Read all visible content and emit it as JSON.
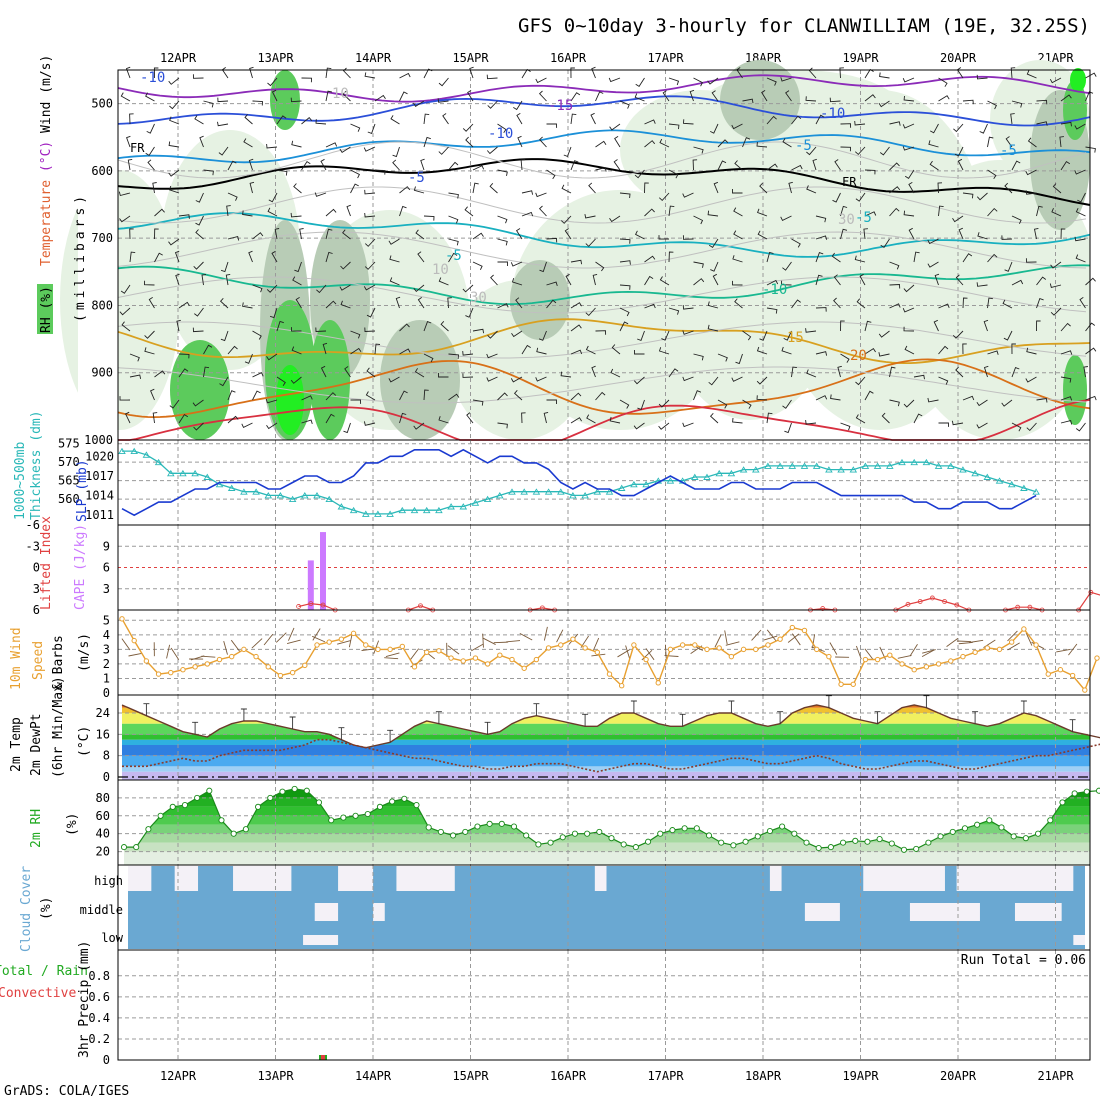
{
  "title": "GFS 0~10day 3-hourly for CLANWILLIAM (19E, 32.25S)",
  "footer": "GrADS: COLA/IGES",
  "dates": [
    "12APR",
    "13APR",
    "14APR",
    "15APR",
    "16APR",
    "17APR",
    "18APR",
    "19APR",
    "20APR",
    "21APR"
  ],
  "colors": {
    "grid": "#9a9a9a",
    "rh_light": "#e6f2e3",
    "rh_mid": "#b8ccb6",
    "rh_green": "#5ccb5c",
    "rh_bright": "#22ee22",
    "slp": "#1a3ad0",
    "thickness": "#2ab8b8",
    "lifted": "#e04040",
    "cape": "#cc7aff",
    "wind": "#e8a030",
    "cloud": "#6aa8d2",
    "cloud_clear": "#f4f1f7"
  },
  "chart_data": [
    {
      "type": "contour",
      "name": "upper",
      "legend": {
        "rh": "RH (%)",
        "temperature": "Temperature",
        "temperature_unit": "(°C)",
        "wind": "Wind (m/s)"
      },
      "ylabel": "(millibars)",
      "yticks": [
        500,
        600,
        700,
        800,
        900,
        1000
      ],
      "ylim": [
        1000,
        450
      ],
      "freezing_label": "FR",
      "isotherm_labels": [
        "-10",
        "-15",
        "-10",
        "-10",
        "-5",
        "-5",
        "-5",
        "-5",
        "-5",
        "-10",
        "10",
        "15",
        "20",
        "10",
        "30",
        "30"
      ]
    },
    {
      "type": "line",
      "name": "slp_thickness",
      "legend": {
        "thickness": "1000~500mb",
        "thickness2": "Thickness (dm)",
        "slp": "SLP (mb)"
      },
      "yticks_thickness": [
        560,
        565,
        570,
        575
      ],
      "yticks_slp": [
        1011,
        1014,
        1017,
        1020
      ],
      "thickness_dm": [
        573,
        573,
        572,
        570,
        567,
        567,
        567,
        566,
        564,
        563,
        562,
        562,
        561,
        561,
        560,
        561,
        561,
        560,
        558,
        557,
        556,
        556,
        556,
        557,
        557,
        557,
        557,
        558,
        558,
        559,
        560,
        561,
        562,
        562,
        562,
        562,
        562,
        561,
        561,
        562,
        562,
        563,
        564,
        564,
        565,
        565,
        565,
        566,
        566,
        567,
        567,
        568,
        568,
        569,
        569,
        569,
        569,
        569,
        568,
        568,
        568,
        569,
        569,
        569,
        570,
        570,
        570,
        569,
        569,
        568,
        567,
        566,
        565,
        564,
        563,
        562
      ],
      "slp_mb": [
        1012,
        1011,
        1012,
        1013,
        1013,
        1014,
        1015,
        1015,
        1016,
        1016,
        1016,
        1016,
        1015,
        1015,
        1016,
        1017,
        1017,
        1016,
        1016,
        1017,
        1019,
        1019,
        1020,
        1020,
        1021,
        1021,
        1021,
        1020,
        1021,
        1020,
        1019,
        1020,
        1020,
        1019,
        1019,
        1018,
        1016,
        1015,
        1016,
        1015,
        1015,
        1014,
        1014,
        1015,
        1016,
        1017,
        1016,
        1015,
        1015,
        1015,
        1016,
        1016,
        1015,
        1015,
        1015,
        1016,
        1016,
        1016,
        1015,
        1014,
        1014,
        1014,
        1014,
        1014,
        1014,
        1013,
        1013,
        1012,
        1012,
        1013,
        1013,
        1013,
        1012,
        1012,
        1013,
        1014
      ]
    },
    {
      "type": "bar",
      "name": "cape_lifted",
      "legend": {
        "lifted": "Lifted Index",
        "cape": "CAPE (J/kg)"
      },
      "yticks_lifted": [
        -6,
        -3,
        0,
        3,
        6
      ],
      "yticks_cape": [
        3,
        6,
        9
      ],
      "cape_x_index": [
        15,
        16
      ],
      "cape_values": [
        7,
        11
      ],
      "lifted_segments": [
        {
          "x": [
            14,
            15,
            16,
            17
          ],
          "y": [
            5.5,
            5.1,
            5.3,
            6.0
          ]
        },
        {
          "x": [
            23,
            24,
            25
          ],
          "y": [
            6.0,
            5.4,
            6.0
          ]
        },
        {
          "x": [
            33,
            34,
            35
          ],
          "y": [
            6.0,
            5.7,
            6.0
          ]
        },
        {
          "x": [
            56,
            57,
            58
          ],
          "y": [
            6.0,
            5.8,
            6.0
          ]
        },
        {
          "x": [
            63,
            64,
            65,
            66,
            67,
            68,
            69
          ],
          "y": [
            6.0,
            5.2,
            4.8,
            4.3,
            4.8,
            5.3,
            6.0
          ]
        },
        {
          "x": [
            72,
            73,
            74,
            75
          ],
          "y": [
            6.0,
            5.6,
            5.6,
            6.0
          ]
        },
        {
          "x": [
            78,
            79,
            80
          ],
          "y": [
            6.0,
            3.5,
            4.0
          ]
        }
      ]
    },
    {
      "type": "line",
      "name": "wind10m",
      "legend": {
        "a": "10m Wind",
        "b": "Speed",
        "c": "& Barbs",
        "d": "(m/s)"
      },
      "yticks": [
        0,
        1,
        2,
        3,
        4,
        5
      ],
      "speed_ms": [
        5.1,
        3.6,
        2.2,
        1.3,
        1.4,
        1.6,
        1.8,
        2.0,
        2.3,
        2.5,
        3.0,
        2.5,
        1.8,
        1.2,
        1.4,
        1.9,
        3.3,
        3.5,
        3.7,
        4.1,
        3.3,
        3.0,
        3.0,
        3.2,
        1.8,
        2.8,
        2.9,
        2.4,
        2.2,
        2.4,
        2.0,
        2.6,
        2.3,
        1.7,
        2.3,
        3.1,
        3.3,
        3.7,
        3.1,
        2.8,
        1.3,
        0.5,
        3.3,
        2.3,
        0.7,
        3.0,
        3.3,
        3.3,
        3.0,
        3.1,
        2.5,
        3.0,
        3.0,
        3.3,
        3.7,
        4.5,
        4.3,
        3.0,
        2.5,
        0.6,
        0.6,
        2.3,
        2.3,
        2.6,
        2.0,
        1.6,
        1.8,
        2.0,
        2.2,
        2.5,
        2.8,
        3.1,
        3.0,
        3.5,
        4.4,
        3.3,
        1.3,
        1.6,
        1.2,
        0.2,
        2.4
      ]
    },
    {
      "type": "area",
      "name": "temp2m",
      "legend": {
        "a": "2m Temp",
        "b": "2m DewPt",
        "c": "(6hr Min/Max)",
        "d": "(°C)"
      },
      "yticks": [
        0,
        8,
        16,
        24
      ],
      "temp_c": [
        27,
        25,
        23,
        21,
        19,
        17,
        16,
        15,
        18,
        20,
        21,
        21,
        20,
        19,
        18,
        17,
        17,
        16,
        14,
        12,
        11,
        12,
        13,
        16,
        19,
        21,
        20,
        19,
        18,
        17,
        16,
        17,
        20,
        22,
        23,
        22,
        21,
        20,
        19,
        19,
        22,
        24,
        24,
        22,
        20,
        19,
        19,
        21,
        23,
        24,
        24,
        22,
        20,
        19,
        20,
        24,
        26,
        27,
        26,
        24,
        22,
        21,
        20,
        23,
        26,
        27,
        26,
        24,
        22,
        21,
        20,
        19,
        20,
        22,
        24,
        23,
        21,
        19,
        17,
        16,
        15,
        14
      ],
      "dew_c": [
        4,
        4,
        4,
        5,
        6,
        7,
        6,
        6,
        8,
        9,
        10,
        10,
        10,
        10,
        11,
        12,
        14,
        14,
        13,
        12,
        11,
        10,
        9,
        8,
        7,
        7,
        6,
        5,
        4,
        4,
        3,
        3,
        4,
        4,
        5,
        5,
        5,
        4,
        3,
        2,
        3,
        4,
        5,
        5,
        4,
        3,
        3,
        4,
        5,
        6,
        7,
        7,
        6,
        5,
        5,
        6,
        7,
        8,
        7,
        5,
        4,
        3,
        3,
        4,
        5,
        6,
        6,
        5,
        4,
        3,
        3,
        4,
        5,
        6,
        7,
        8,
        8,
        9,
        10,
        11,
        12,
        13
      ]
    },
    {
      "type": "area",
      "name": "rh2m",
      "legend": {
        "a": "2m RH",
        "b": "(%)"
      },
      "yticks": [
        20,
        40,
        60,
        80
      ],
      "rh_pct": [
        25,
        25,
        45,
        60,
        70,
        72,
        80,
        88,
        55,
        40,
        45,
        70,
        80,
        87,
        90,
        88,
        75,
        55,
        58,
        60,
        62,
        70,
        76,
        79,
        72,
        47,
        42,
        38,
        42,
        48,
        51,
        51,
        48,
        38,
        28,
        30,
        36,
        40,
        40,
        42,
        35,
        28,
        25,
        31,
        40,
        44,
        46,
        46,
        38,
        30,
        27,
        31,
        37,
        43,
        48,
        40,
        30,
        24,
        25,
        30,
        32,
        31,
        34,
        29,
        22,
        23,
        30,
        37,
        42,
        46,
        50,
        55,
        47,
        37,
        35,
        40,
        55,
        75,
        85,
        87,
        88
      ]
    },
    {
      "type": "heatmap",
      "name": "cloud",
      "legend": {
        "a": "Cloud Cover",
        "b": "(%)"
      },
      "levels": [
        "high",
        "middle",
        "low"
      ],
      "clear_high": [
        [
          0,
          2
        ],
        [
          4,
          6
        ],
        [
          9,
          14
        ],
        [
          18,
          21
        ],
        [
          23,
          28
        ],
        [
          40,
          41
        ],
        [
          55,
          56
        ],
        [
          63,
          70
        ],
        [
          71,
          81
        ],
        [
          82,
          82
        ]
      ],
      "clear_middle": [
        [
          16,
          18
        ],
        [
          21,
          22
        ],
        [
          58,
          61
        ],
        [
          67,
          73
        ],
        [
          76,
          80
        ]
      ],
      "clear_low": [
        [
          15,
          18
        ],
        [
          81,
          82
        ]
      ]
    },
    {
      "type": "bar",
      "name": "precip",
      "legend": {
        "a": "Total / Rain",
        "b": "Convective",
        "c": "3hr Precip (mm)"
      },
      "yticks": [
        0,
        0.2,
        0.4,
        0.6,
        0.8
      ],
      "run_total": "Run Total = 0.06",
      "bar_x_index": [
        16
      ],
      "bar_values": [
        0.02
      ]
    }
  ]
}
